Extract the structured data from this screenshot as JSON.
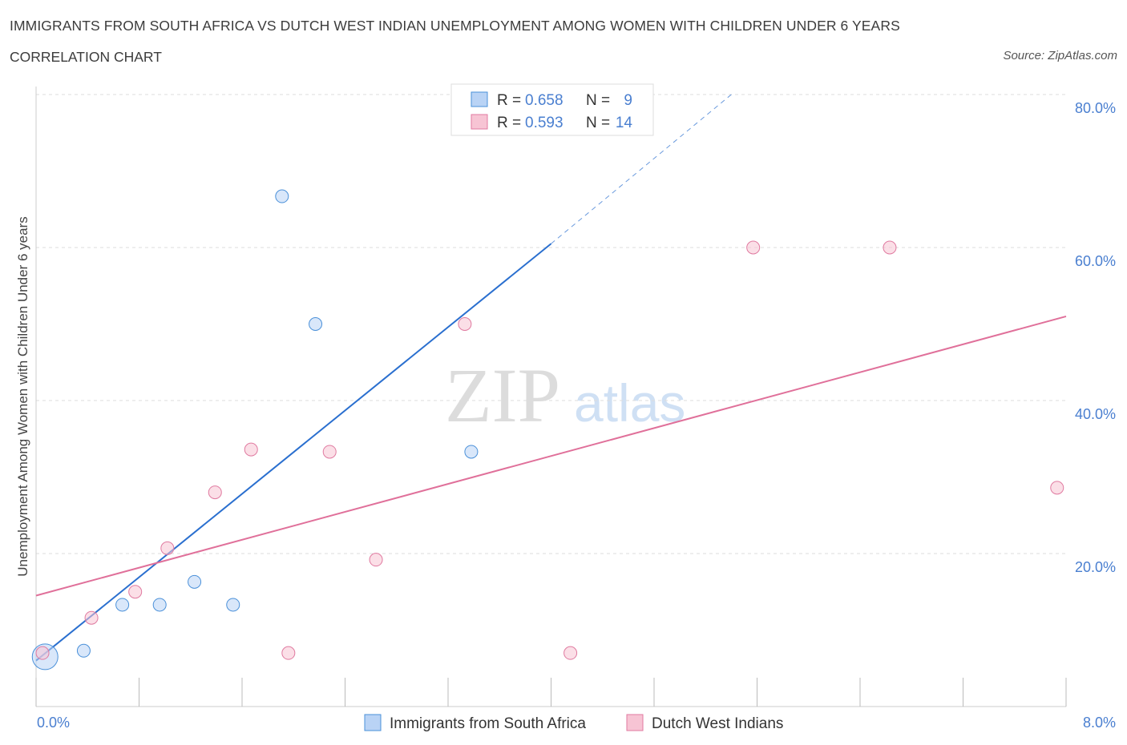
{
  "header": {
    "title": "IMMIGRANTS FROM SOUTH AFRICA VS DUTCH WEST INDIAN UNEMPLOYMENT AMONG WOMEN WITH CHILDREN UNDER 6 YEARS",
    "subtitle": "CORRELATION CHART",
    "source": "Source: ZipAtlas.com"
  },
  "watermark": {
    "zip": "ZIP",
    "atlas": "atlas"
  },
  "colors": {
    "blue": "#4a90d9",
    "blue_fill": "#b9d3f5",
    "blue_line": "#2a6fcf",
    "pink": "#e07aa0",
    "pink_fill": "#f7c4d4",
    "pink_line": "#e0709a",
    "axis_text": "#4a7fd0",
    "grid": "#dddddd"
  },
  "legend": {
    "rows": [
      {
        "r_label": "R = ",
        "r_value": "0.658",
        "n_label": "N = ",
        "n_value": "9"
      },
      {
        "r_label": "R = ",
        "r_value": "0.593",
        "n_label": "N = ",
        "n_value": "14"
      }
    ]
  },
  "chart_data": {
    "type": "scatter",
    "title": "IMMIGRANTS FROM SOUTH AFRICA VS DUTCH WEST INDIAN UNEMPLOYMENT AMONG WOMEN WITH CHILDREN UNDER 6 YEARS",
    "xlabel": "",
    "ylabel": "Unemployment Among Women with Children Under 6 years",
    "xlim": [
      0,
      8
    ],
    "ylim": [
      0,
      80
    ],
    "x_tick_labels": [
      "0.0%",
      "8.0%"
    ],
    "y_tick_labels": [
      "20.0%",
      "40.0%",
      "60.0%",
      "80.0%"
    ],
    "y_ticks": [
      20,
      40,
      60,
      80
    ],
    "grid": true,
    "series": [
      {
        "name": "Immigrants from South Africa",
        "color": "blue",
        "points": [
          {
            "x": 0.07,
            "y": 6.5,
            "big": true
          },
          {
            "x": 0.37,
            "y": 7.3
          },
          {
            "x": 0.67,
            "y": 13.3
          },
          {
            "x": 0.96,
            "y": 13.3
          },
          {
            "x": 1.23,
            "y": 16.3
          },
          {
            "x": 1.53,
            "y": 13.3
          },
          {
            "x": 1.91,
            "y": 66.7
          },
          {
            "x": 2.17,
            "y": 50.0
          },
          {
            "x": 3.38,
            "y": 33.3
          }
        ],
        "trend": {
          "x0": 0.0,
          "y0": 6.0,
          "x1": 4.0,
          "y1": 60.5,
          "dash_to_x": 5.4,
          "dash_to_y": 80.0
        }
      },
      {
        "name": "Dutch West Indians",
        "color": "pink",
        "points": [
          {
            "x": 0.05,
            "y": 7.0
          },
          {
            "x": 0.43,
            "y": 11.6
          },
          {
            "x": 0.77,
            "y": 15.0
          },
          {
            "x": 1.02,
            "y": 20.7
          },
          {
            "x": 1.39,
            "y": 28.0
          },
          {
            "x": 1.67,
            "y": 33.6
          },
          {
            "x": 1.96,
            "y": 7.0
          },
          {
            "x": 2.28,
            "y": 33.3
          },
          {
            "x": 2.64,
            "y": 19.2
          },
          {
            "x": 3.33,
            "y": 50.0
          },
          {
            "x": 4.15,
            "y": 7.0
          },
          {
            "x": 5.57,
            "y": 60.0
          },
          {
            "x": 6.63,
            "y": 60.0
          },
          {
            "x": 7.93,
            "y": 28.6
          }
        ],
        "trend": {
          "x0": 0.0,
          "y0": 14.5,
          "x1": 8.0,
          "y1": 51.0
        }
      }
    ]
  }
}
